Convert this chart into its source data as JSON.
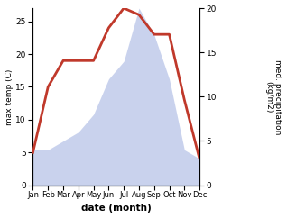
{
  "months": [
    "Jan",
    "Feb",
    "Mar",
    "Apr",
    "May",
    "Jun",
    "Jul",
    "Aug",
    "Sep",
    "Oct",
    "Nov",
    "Dec"
  ],
  "temperature": [
    5,
    15,
    19,
    19,
    19,
    24,
    27,
    26,
    23,
    23,
    13,
    4
  ],
  "precipitation": [
    4,
    4,
    5,
    6,
    8,
    12,
    14,
    20,
    17,
    12,
    4,
    3
  ],
  "temp_color": "#c0392b",
  "precip_color": "#b8c4e8",
  "left_label": "max temp (C)",
  "right_label": "med. precipitation\n(kg/m2)",
  "xlabel": "date (month)",
  "ylim_left": [
    0,
    27
  ],
  "ylim_right": [
    0,
    20
  ],
  "yticks_left": [
    0,
    5,
    10,
    15,
    20,
    25
  ],
  "yticks_right": [
    0,
    5,
    10,
    15,
    20
  ],
  "bg_color": "#ffffff",
  "line_width": 2.0
}
